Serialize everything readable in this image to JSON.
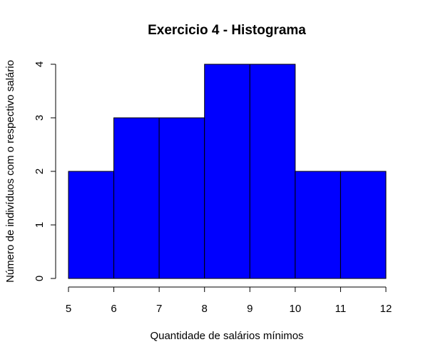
{
  "chart_data": {
    "type": "bar",
    "title": "Exercicio 4 - Histograma",
    "xlabel": "Quantidade de salários mínimos",
    "ylabel": "Número de indivíduos com o respectivo salário",
    "bins": [
      {
        "from": 5,
        "to": 6,
        "count": 2
      },
      {
        "from": 6,
        "to": 7,
        "count": 3
      },
      {
        "from": 7,
        "to": 8,
        "count": 3
      },
      {
        "from": 8,
        "to": 9,
        "count": 4
      },
      {
        "from": 9,
        "to": 10,
        "count": 4
      },
      {
        "from": 10,
        "to": 11,
        "count": 2
      },
      {
        "from": 11,
        "to": 12,
        "count": 2
      }
    ],
    "xticks": [
      "5",
      "6",
      "7",
      "8",
      "9",
      "10",
      "11",
      "12"
    ],
    "yticks": [
      "0",
      "1",
      "2",
      "3",
      "4"
    ],
    "xlim": [
      5,
      12
    ],
    "ylim": [
      0,
      4
    ],
    "bar_color": "#0000FF",
    "edge_color": "#000000",
    "grid": false,
    "legend": "none"
  }
}
